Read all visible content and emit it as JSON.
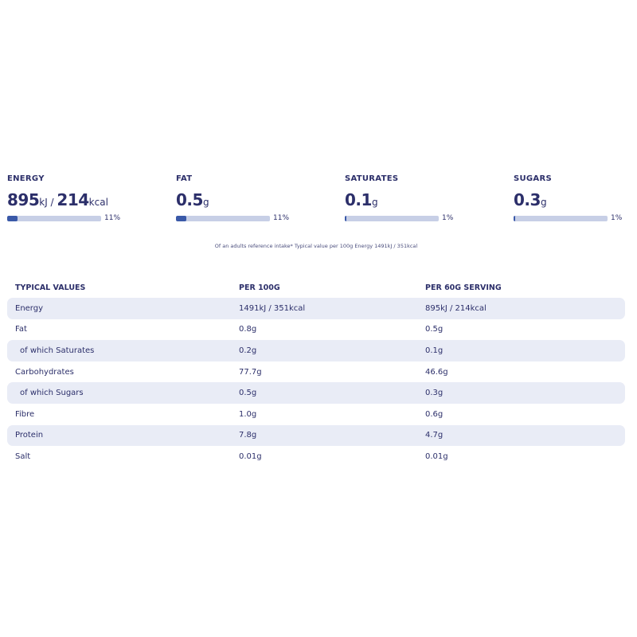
{
  "colors": {
    "text": "#2c2f6a",
    "bar_fill": "#3a59a8",
    "bar_track": "#c7cfe6",
    "row_alt": "#e9ecf6"
  },
  "stats": [
    {
      "label": "ENERGY",
      "value1": "895",
      "unit1": "kJ / ",
      "value2": "214",
      "unit2": "kcal",
      "percent": 11,
      "percent_label": "11%"
    },
    {
      "label": "FAT",
      "value1": "0.5",
      "unit1": "g",
      "percent": 11,
      "percent_label": "11%"
    },
    {
      "label": "SATURATES",
      "value1": "0.1",
      "unit1": "g",
      "percent": 1,
      "percent_label": "1%"
    },
    {
      "label": "SUGARS",
      "value1": "0.3",
      "unit1": "g",
      "percent": 1,
      "percent_label": "1%"
    }
  ],
  "note": "Of an adults reference intake* Typical value per 100g Energy 1491kJ / 351kcal",
  "table": {
    "headers": [
      "TYPICAL VALUES",
      "PER 100G",
      "PER 60G SERVING"
    ],
    "rows": [
      {
        "name": "Energy",
        "per100": "1491kJ / 351kcal",
        "serving": "895kJ / 214kcal"
      },
      {
        "name": "Fat",
        "per100": "0.8g",
        "serving": "0.5g"
      },
      {
        "name": "of which Saturates",
        "per100": "0.2g",
        "serving": "0.1g",
        "indent": true
      },
      {
        "name": "Carbohydrates",
        "per100": "77.7g",
        "serving": "46.6g"
      },
      {
        "name": "of which Sugars",
        "per100": "0.5g",
        "serving": "0.3g",
        "indent": true
      },
      {
        "name": "Fibre",
        "per100": "1.0g",
        "serving": "0.6g"
      },
      {
        "name": "Protein",
        "per100": "7.8g",
        "serving": "4.7g"
      },
      {
        "name": "Salt",
        "per100": "0.01g",
        "serving": "0.01g"
      }
    ]
  }
}
